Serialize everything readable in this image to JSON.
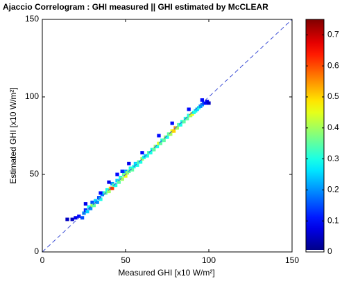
{
  "chart_data": {
    "type": "heatmap",
    "title": "Ajaccio Correlogram : GHI measured || GHI estimated by McCLEAR",
    "xlabel": "Measured GHI [x10 W/m²]",
    "ylabel": "Estimated GHI [x10 W/m²]",
    "xlim": [
      0,
      150
    ],
    "ylim": [
      0,
      150
    ],
    "xticks": [
      0,
      50,
      100,
      150
    ],
    "yticks": [
      0,
      50,
      100,
      150
    ],
    "colormap": "jet",
    "clim": [
      0,
      0.75
    ],
    "cticks": [
      0,
      0.1,
      0.2,
      0.3,
      0.4,
      0.5,
      0.6,
      0.7
    ],
    "diagonal": {
      "x": [
        0,
        150
      ],
      "y": [
        0,
        150
      ],
      "color": "#3d4fd6"
    },
    "cells": {
      "x": [
        18,
        20,
        22,
        24,
        25,
        26,
        27,
        28,
        29,
        30,
        30,
        31,
        32,
        33,
        34,
        35,
        36,
        37,
        38,
        39,
        40,
        41,
        42,
        42,
        43,
        44,
        45,
        46,
        47,
        48,
        49,
        50,
        50,
        51,
        52,
        53,
        54,
        55,
        56,
        57,
        58,
        59,
        60,
        61,
        62,
        63,
        64,
        65,
        66,
        67,
        68,
        69,
        70,
        71,
        72,
        73,
        74,
        75,
        76,
        77,
        78,
        79,
        80,
        81,
        82,
        83,
        84,
        85,
        86,
        87,
        88,
        89,
        90,
        91,
        92,
        93,
        94,
        95,
        96,
        97,
        98,
        99,
        100,
        40,
        45,
        52,
        60,
        70,
        35,
        26,
        48,
        78,
        88,
        15,
        96
      ],
      "y": [
        21,
        22,
        23,
        22,
        25,
        27,
        26,
        29,
        28,
        30,
        32,
        30,
        33,
        32,
        35,
        34,
        37,
        38,
        38,
        40,
        39,
        41,
        41,
        44,
        43,
        43,
        46,
        45,
        48,
        47,
        50,
        49,
        52,
        51,
        52,
        54,
        53,
        55,
        57,
        56,
        58,
        58,
        60,
        61,
        62,
        62,
        64,
        64,
        66,
        66,
        68,
        68,
        70,
        70,
        72,
        72,
        74,
        74,
        76,
        76,
        78,
        78,
        80,
        80,
        82,
        82,
        84,
        84,
        86,
        86,
        88,
        88,
        89,
        90,
        91,
        92,
        93,
        94,
        95,
        96,
        96,
        97,
        96,
        45,
        50,
        57,
        64,
        75,
        38,
        31,
        52,
        83,
        92,
        21,
        98
      ],
      "values": [
        0.05,
        0.08,
        0.1,
        0.15,
        0.2,
        0.12,
        0.25,
        0.3,
        0.2,
        0.4,
        0.15,
        0.35,
        0.25,
        0.2,
        0.15,
        0.3,
        0.2,
        0.25,
        0.35,
        0.3,
        0.4,
        0.5,
        0.62,
        0.2,
        0.35,
        0.3,
        0.25,
        0.35,
        0.3,
        0.4,
        0.35,
        0.45,
        0.2,
        0.4,
        0.35,
        0.3,
        0.35,
        0.3,
        0.25,
        0.3,
        0.35,
        0.3,
        0.4,
        0.3,
        0.25,
        0.3,
        0.35,
        0.3,
        0.3,
        0.35,
        0.4,
        0.3,
        0.45,
        0.35,
        0.3,
        0.35,
        0.4,
        0.3,
        0.35,
        0.4,
        0.45,
        0.5,
        0.55,
        0.4,
        0.35,
        0.3,
        0.3,
        0.35,
        0.3,
        0.35,
        0.3,
        0.4,
        0.45,
        0.3,
        0.3,
        0.25,
        0.3,
        0.2,
        0.2,
        0.15,
        0.1,
        0.08,
        0.05,
        0.08,
        0.1,
        0.08,
        0.1,
        0.1,
        0.1,
        0.08,
        0.12,
        0.1,
        0.1,
        0.05,
        0.1
      ]
    }
  }
}
